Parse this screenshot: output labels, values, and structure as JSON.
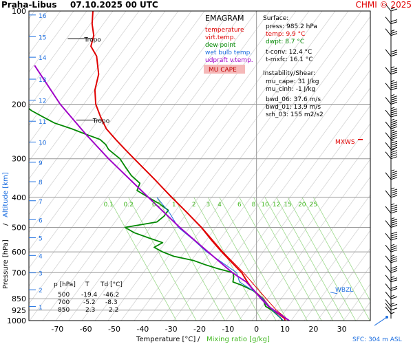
{
  "header": {
    "station": "Praha-Libus",
    "datetime": "07.10.2025 00 UTC",
    "copyright": "CHMI © 2025"
  },
  "chart_data": {
    "type": "line",
    "title": "EMAGRAM",
    "xlabel_left": "Temperature [°C]",
    "xlabel_sep": "/",
    "xlabel_right": "Mixing ratio [g/kg]",
    "ylabel_left": "Pressure [hPa]",
    "ylabel_sep": "/",
    "ylabel_right": "Altitude [km]",
    "xlim": [
      -80,
      40
    ],
    "ylim": [
      1000,
      100
    ],
    "y_scale": "log",
    "x_ticks": [
      -70,
      -60,
      -50,
      -40,
      -30,
      -20,
      -10,
      0,
      10,
      20,
      30
    ],
    "y_ticks": [
      100,
      200,
      300,
      400,
      500,
      600,
      700,
      850,
      925,
      1000
    ],
    "km_ticks": [
      {
        "km": 1,
        "p": 900
      },
      {
        "km": 2,
        "p": 795
      },
      {
        "km": 3,
        "p": 701
      },
      {
        "km": 4,
        "p": 616
      },
      {
        "km": 5,
        "p": 540
      },
      {
        "km": 6,
        "p": 472
      },
      {
        "km": 7,
        "p": 410
      },
      {
        "km": 8,
        "p": 356
      },
      {
        "km": 9,
        "p": 308
      },
      {
        "km": 10,
        "p": 265
      },
      {
        "km": 11,
        "p": 227
      },
      {
        "km": 12,
        "p": 194
      },
      {
        "km": 13,
        "p": 166
      },
      {
        "km": 14,
        "p": 141
      },
      {
        "km": 15,
        "p": 121
      },
      {
        "km": 16,
        "p": 103
      }
    ],
    "mixing_ratio_labels": [
      "0.1",
      "0.2",
      "0.5",
      "1",
      "2",
      "3",
      "4",
      "6",
      "8",
      "10",
      "12",
      "15",
      "20",
      "25"
    ],
    "mixing_ratio_positions_T_at_400": [
      -52,
      -45,
      -35,
      -29,
      -22,
      -17,
      -13,
      -6,
      -1,
      3,
      7,
      11,
      16,
      20
    ],
    "legend": [
      {
        "label": "temperature",
        "color": "#e00000"
      },
      {
        "label": "virt.temp.",
        "color": "#e00000"
      },
      {
        "label": "dew point",
        "color": "#008800"
      },
      {
        "label": "wet bulb temp.",
        "color": "#1e6fe0"
      },
      {
        "label": "udpraft v.temp.",
        "color": "#a000c8"
      }
    ],
    "mu_cape_label": "MU CAPE",
    "series": [
      {
        "name": "temperature",
        "color": "#e00000",
        "points": [
          [
            1000,
            10
          ],
          [
            985,
            9.9
          ],
          [
            950,
            7.6
          ],
          [
            925,
            5.8
          ],
          [
            900,
            4.4
          ],
          [
            850,
            2.3
          ],
          [
            800,
            -1.0
          ],
          [
            750,
            -3.2
          ],
          [
            700,
            -5.2
          ],
          [
            650,
            -8.6
          ],
          [
            600,
            -12.2
          ],
          [
            550,
            -15.8
          ],
          [
            500,
            -19.4
          ],
          [
            450,
            -24.2
          ],
          [
            400,
            -29.8
          ],
          [
            350,
            -35.8
          ],
          [
            300,
            -43.0
          ],
          [
            280,
            -46.2
          ],
          [
            260,
            -49.5
          ],
          [
            240,
            -52.8
          ],
          [
            220,
            -54.8
          ],
          [
            200,
            -56.5
          ],
          [
            180,
            -56.8
          ],
          [
            160,
            -55.5
          ],
          [
            140,
            -56.2
          ],
          [
            130,
            -58.2
          ],
          [
            120,
            -57.2
          ],
          [
            110,
            -57.8
          ],
          [
            100,
            -57.5
          ]
        ]
      },
      {
        "name": "virt.temp.",
        "color": "#e00000",
        "points": [
          [
            1000,
            11.4
          ],
          [
            925,
            7.0
          ],
          [
            850,
            3.4
          ],
          [
            700,
            -4.6
          ],
          [
            600,
            -11.8
          ],
          [
            500,
            -19.2
          ],
          [
            400,
            -29.6
          ],
          [
            300,
            -43.0
          ]
        ]
      },
      {
        "name": "dew point",
        "color": "#008800",
        "points": [
          [
            1000,
            9.0
          ],
          [
            985,
            8.7
          ],
          [
            950,
            6.8
          ],
          [
            925,
            5.4
          ],
          [
            900,
            3.2
          ],
          [
            850,
            2.2
          ],
          [
            800,
            -1.2
          ],
          [
            770,
            -5.0
          ],
          [
            750,
            -8.3
          ],
          [
            720,
            -8.0
          ],
          [
            700,
            -8.3
          ],
          [
            680,
            -13.5
          ],
          [
            660,
            -18.0
          ],
          [
            640,
            -22.0
          ],
          [
            620,
            -29.0
          ],
          [
            600,
            -33.0
          ],
          [
            580,
            -36.0
          ],
          [
            560,
            -33.0
          ],
          [
            540,
            -38.0
          ],
          [
            520,
            -43.0
          ],
          [
            500,
            -46.2
          ],
          [
            480,
            -35.0
          ],
          [
            460,
            -32.5
          ],
          [
            440,
            -31.0
          ],
          [
            420,
            -34.0
          ],
          [
            400,
            -38.0
          ],
          [
            380,
            -42.0
          ],
          [
            360,
            -41.0
          ],
          [
            340,
            -44.0
          ],
          [
            320,
            -46.0
          ],
          [
            300,
            -48.0
          ],
          [
            290,
            -50.0
          ],
          [
            280,
            -52.0
          ],
          [
            270,
            -53.0
          ],
          [
            260,
            -55.0
          ],
          [
            250,
            -60.0
          ],
          [
            240,
            -65.0
          ],
          [
            230,
            -71.0
          ],
          [
            220,
            -75.0
          ],
          [
            210,
            -79.0
          ],
          [
            200,
            -82.0
          ]
        ]
      },
      {
        "name": "wet bulb temp.",
        "color": "#1e6fe0",
        "points": [
          [
            1000,
            9.5
          ],
          [
            925,
            5.6
          ],
          [
            850,
            2.2
          ],
          [
            800,
            -1.2
          ],
          [
            750,
            -6.0
          ],
          [
            700,
            -7.0
          ],
          [
            650,
            -12.0
          ],
          [
            600,
            -17.5
          ],
          [
            550,
            -22.0
          ],
          [
            500,
            -27.5
          ],
          [
            450,
            -30.5
          ],
          [
            400,
            -35.0
          ]
        ]
      },
      {
        "name": "udpraft v.temp.",
        "color": "#a000c8",
        "points": [
          [
            1000,
            11.5
          ],
          [
            900,
            4.2
          ],
          [
            850,
            1.6
          ],
          [
            800,
            -0.8
          ],
          [
            750,
            -3.6
          ],
          [
            700,
            -8.5
          ],
          [
            600,
            -17.0
          ],
          [
            500,
            -27.0
          ],
          [
            400,
            -38.0
          ],
          [
            300,
            -52.0
          ],
          [
            250,
            -60.0
          ],
          [
            200,
            -69.0
          ],
          [
            150,
            -78.0
          ]
        ]
      }
    ],
    "annotations": [
      {
        "label": "Tropo",
        "p": 225,
        "T": -59
      },
      {
        "label": "Tropo",
        "p": 123,
        "T": -62
      }
    ],
    "mxws_label": "MXWS",
    "mxws_p": 260,
    "wbzl_label": "WBZL",
    "wbzl_p": 810,
    "table": {
      "header": [
        "p [hPa]",
        "T",
        "Td [°C]"
      ],
      "rows": [
        [
          "500",
          "-19.4",
          "-46.2"
        ],
        [
          "700",
          "-5.2",
          "-8.3"
        ],
        [
          "850",
          "2.3",
          "2.2"
        ]
      ]
    },
    "info_panel": {
      "surface_title": "Surface:",
      "press": "press: 985.2 hPa",
      "temp": "temp: 9.9 °C",
      "dwpt": "dwpt: 8.7 °C",
      "tconv": "t-conv: 12.4 °C",
      "tmxfc": "t-mxfc: 16.1 °C",
      "instability_title": "Instability/Shear:",
      "mu_cape": "mu_cape: 31 J/kg",
      "mu_cinh": "mu_cinh: -1 J/kg",
      "bwd_06": "bwd_06: 37.6 m/s",
      "bwd_01": "bwd_01: 13.9 m/s",
      "srh_03": "srh_03: 155 m2/s2"
    },
    "sfc_label": "SFC: 304 m ASL",
    "wind_barbs": [
      {
        "p": 985,
        "speed": 0,
        "surface": true
      },
      {
        "p": 950,
        "speed": 5
      },
      {
        "p": 925,
        "speed": 10
      },
      {
        "p": 900,
        "speed": 15
      },
      {
        "p": 850,
        "speed": 15
      },
      {
        "p": 800,
        "speed": 20
      },
      {
        "p": 750,
        "speed": 25
      },
      {
        "p": 700,
        "speed": 30
      },
      {
        "p": 650,
        "speed": 35
      },
      {
        "p": 600,
        "speed": 35
      },
      {
        "p": 550,
        "speed": 40
      },
      {
        "p": 500,
        "speed": 45
      },
      {
        "p": 450,
        "speed": 50
      },
      {
        "p": 400,
        "speed": 55
      },
      {
        "p": 350,
        "speed": 60
      },
      {
        "p": 300,
        "speed": 65
      },
      {
        "p": 280,
        "speed": 70
      },
      {
        "p": 260,
        "speed": 75
      },
      {
        "p": 240,
        "speed": 70
      },
      {
        "p": 220,
        "speed": 60
      },
      {
        "p": 200,
        "speed": 50
      },
      {
        "p": 180,
        "speed": 45
      },
      {
        "p": 160,
        "speed": 35
      },
      {
        "p": 140,
        "speed": 30
      },
      {
        "p": 120,
        "speed": 25
      },
      {
        "p": 110,
        "speed": 20
      },
      {
        "p": 100,
        "speed": 15
      }
    ]
  }
}
